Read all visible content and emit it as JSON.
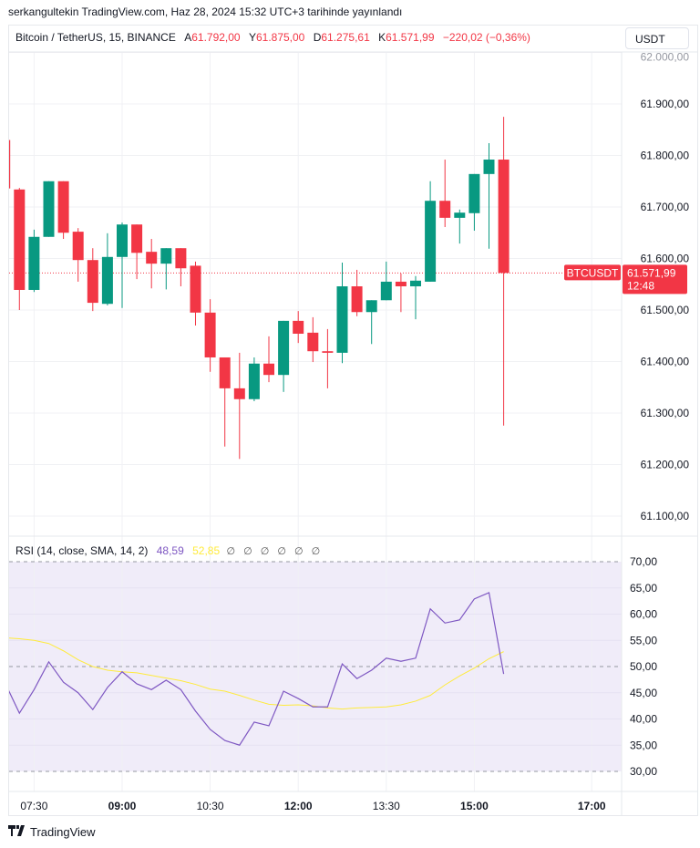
{
  "published": "serkangultekin TradingView.com, Haz 28, 2024 15:32 UTC+3 tarihinde yayınlandı",
  "legend": {
    "symbol": "Bitcoin / TetherUS, 15, BINANCE",
    "open_label": "A",
    "open": "61.792,00",
    "high_label": "Y",
    "high": "61.875,00",
    "low_label": "D",
    "low": "61.275,61",
    "close_label": "K",
    "close": "61.571,99",
    "change": "−220,02 (−0,36%)"
  },
  "currency_button": "USDT",
  "price_tag": {
    "symbol": "BTCUSDT",
    "price": "61.571,99",
    "countdown": "12:48"
  },
  "rsi_legend": {
    "name": "RSI (14, close, SMA, 14, 2)",
    "rsi": "48,59",
    "sma": "52,85",
    "empty": "∅ ∅ ∅ ∅ ∅ ∅"
  },
  "footer_brand": "TradingView",
  "colors": {
    "up": "#089981",
    "down": "#f23645",
    "rsi": "#7e57c2",
    "sma": "#ffeb3b",
    "rsi_band": "#f0ecf9"
  },
  "chart_data": [
    {
      "type": "candlestick",
      "title": "Bitcoin / TetherUS, 15, BINANCE",
      "ylim": [
        61050,
        62000
      ],
      "price_ticks": [
        {
          "v": 62000,
          "label": "62.000,00"
        },
        {
          "v": 61900,
          "label": "61.900,00"
        },
        {
          "v": 61800,
          "label": "61.800,00"
        },
        {
          "v": 61700,
          "label": "61.700,00"
        },
        {
          "v": 61600,
          "label": "61.600,00"
        },
        {
          "v": 61500,
          "label": "61.500,00"
        },
        {
          "v": 61400,
          "label": "61.400,00"
        },
        {
          "v": 61300,
          "label": "61.300,00"
        },
        {
          "v": 61200,
          "label": "61.200,00"
        },
        {
          "v": 61100,
          "label": "61.100,00"
        }
      ],
      "time_ticks": [
        {
          "t": "07:30",
          "bold": false
        },
        {
          "t": "09:00",
          "bold": true
        },
        {
          "t": "10:30",
          "bold": false
        },
        {
          "t": "12:00",
          "bold": true
        },
        {
          "t": "13:30",
          "bold": false
        },
        {
          "t": "15:00",
          "bold": true
        },
        {
          "t": "17:00",
          "bold": true
        }
      ],
      "last_price": 61571.99,
      "candles": [
        {
          "t": "07:00",
          "o": 61830,
          "h": 61830,
          "l": 61736,
          "c": 61736
        },
        {
          "t": "07:15",
          "o": 61734,
          "h": 61737,
          "l": 61500,
          "c": 61539
        },
        {
          "t": "07:30",
          "o": 61539,
          "h": 61656,
          "l": 61535,
          "c": 61642
        },
        {
          "t": "07:45",
          "o": 61642,
          "h": 61750,
          "l": 61642,
          "c": 61750
        },
        {
          "t": "08:00",
          "o": 61750,
          "h": 61750,
          "l": 61638,
          "c": 61650
        },
        {
          "t": "08:15",
          "o": 61652,
          "h": 61659,
          "l": 61555,
          "c": 61597
        },
        {
          "t": "08:30",
          "o": 61597,
          "h": 61620,
          "l": 61498,
          "c": 61514
        },
        {
          "t": "08:45",
          "o": 61512,
          "h": 61649,
          "l": 61509,
          "c": 61603
        },
        {
          "t": "09:00",
          "o": 61603,
          "h": 61670,
          "l": 61504,
          "c": 61666
        },
        {
          "t": "09:15",
          "o": 61666,
          "h": 61666,
          "l": 61560,
          "c": 61611
        },
        {
          "t": "09:30",
          "o": 61613,
          "h": 61638,
          "l": 61542,
          "c": 61590
        },
        {
          "t": "09:45",
          "o": 61590,
          "h": 61620,
          "l": 61540,
          "c": 61620
        },
        {
          "t": "10:00",
          "o": 61620,
          "h": 61620,
          "l": 61546,
          "c": 61581
        },
        {
          "t": "10:15",
          "o": 61586,
          "h": 61594,
          "l": 61470,
          "c": 61495
        },
        {
          "t": "10:30",
          "o": 61495,
          "h": 61521,
          "l": 61380,
          "c": 61408
        },
        {
          "t": "10:45",
          "o": 61408,
          "h": 61408,
          "l": 61235,
          "c": 61348
        },
        {
          "t": "11:00",
          "o": 61348,
          "h": 61417,
          "l": 61211,
          "c": 61327
        },
        {
          "t": "11:15",
          "o": 61327,
          "h": 61408,
          "l": 61323,
          "c": 61396
        },
        {
          "t": "11:30",
          "o": 61396,
          "h": 61449,
          "l": 61360,
          "c": 61374
        },
        {
          "t": "11:45",
          "o": 61374,
          "h": 61479,
          "l": 61341,
          "c": 61479
        },
        {
          "t": "12:00",
          "o": 61479,
          "h": 61498,
          "l": 61436,
          "c": 61454
        },
        {
          "t": "12:15",
          "o": 61456,
          "h": 61486,
          "l": 61399,
          "c": 61420
        },
        {
          "t": "12:30",
          "o": 61420,
          "h": 61463,
          "l": 61348,
          "c": 61417
        },
        {
          "t": "12:45",
          "o": 61417,
          "h": 61592,
          "l": 61397,
          "c": 61546
        },
        {
          "t": "13:00",
          "o": 61546,
          "h": 61578,
          "l": 61488,
          "c": 61496
        },
        {
          "t": "13:15",
          "o": 61496,
          "h": 61519,
          "l": 61434,
          "c": 61519
        },
        {
          "t": "13:30",
          "o": 61519,
          "h": 61594,
          "l": 61519,
          "c": 61555
        },
        {
          "t": "13:45",
          "o": 61555,
          "h": 61571,
          "l": 61496,
          "c": 61546
        },
        {
          "t": "14:00",
          "o": 61546,
          "h": 61566,
          "l": 61482,
          "c": 61557
        },
        {
          "t": "14:15",
          "o": 61555,
          "h": 61750,
          "l": 61555,
          "c": 61712
        },
        {
          "t": "14:30",
          "o": 61712,
          "h": 61792,
          "l": 61661,
          "c": 61679
        },
        {
          "t": "14:45",
          "o": 61679,
          "h": 61695,
          "l": 61629,
          "c": 61689
        },
        {
          "t": "15:00",
          "o": 61688,
          "h": 61764,
          "l": 61654,
          "c": 61764
        },
        {
          "t": "15:15",
          "o": 61764,
          "h": 61824,
          "l": 61619,
          "c": 61792
        },
        {
          "t": "15:30",
          "o": 61792,
          "h": 61875,
          "l": 61275.61,
          "c": 61571.99
        }
      ]
    },
    {
      "type": "line",
      "title": "RSI (14, close, SMA, 14, 2)",
      "ylim": [
        27,
        72
      ],
      "bands": [
        30,
        50,
        70
      ],
      "y_ticks": [
        {
          "v": 70,
          "label": "70,00"
        },
        {
          "v": 65,
          "label": "65,00"
        },
        {
          "v": 60,
          "label": "60,00"
        },
        {
          "v": 55,
          "label": "55,00"
        },
        {
          "v": 50,
          "label": "50,00"
        },
        {
          "v": 45,
          "label": "45,00"
        },
        {
          "v": 40,
          "label": "40,00"
        },
        {
          "v": 35,
          "label": "35,00"
        },
        {
          "v": 30,
          "label": "30,00"
        }
      ],
      "x": [
        "07:00",
        "07:15",
        "07:30",
        "07:45",
        "08:00",
        "08:15",
        "08:30",
        "08:45",
        "09:00",
        "09:15",
        "09:30",
        "09:45",
        "10:00",
        "10:15",
        "10:30",
        "10:45",
        "11:00",
        "11:15",
        "11:30",
        "11:45",
        "12:00",
        "12:15",
        "12:30",
        "12:45",
        "13:00",
        "13:15",
        "13:30",
        "13:45",
        "14:00",
        "14:15",
        "14:30",
        "14:45",
        "15:00",
        "15:15",
        "15:30"
      ],
      "series": [
        {
          "name": "RSI",
          "values": [
            47.0,
            41.1,
            45.6,
            50.9,
            47.0,
            45.0,
            41.8,
            46.0,
            49.0,
            46.7,
            45.6,
            47.4,
            45.6,
            41.5,
            38.0,
            35.9,
            35.0,
            39.4,
            38.7,
            45.3,
            43.9,
            42.3,
            42.3,
            50.5,
            47.7,
            49.3,
            51.6,
            51.0,
            51.6,
            61.0,
            58.3,
            58.9,
            62.9,
            64.1,
            48.59
          ]
        },
        {
          "name": "SMA",
          "values": [
            55.5,
            55.3,
            55.0,
            54.4,
            53.0,
            51.3,
            50.0,
            49.3,
            49.0,
            48.8,
            48.3,
            47.8,
            47.3,
            46.6,
            45.7,
            45.3,
            44.5,
            43.6,
            42.8,
            42.6,
            42.7,
            42.5,
            42.1,
            41.9,
            42.1,
            42.2,
            42.3,
            42.7,
            43.4,
            44.5,
            46.5,
            48.2,
            49.7,
            51.5,
            52.85
          ]
        }
      ]
    }
  ]
}
